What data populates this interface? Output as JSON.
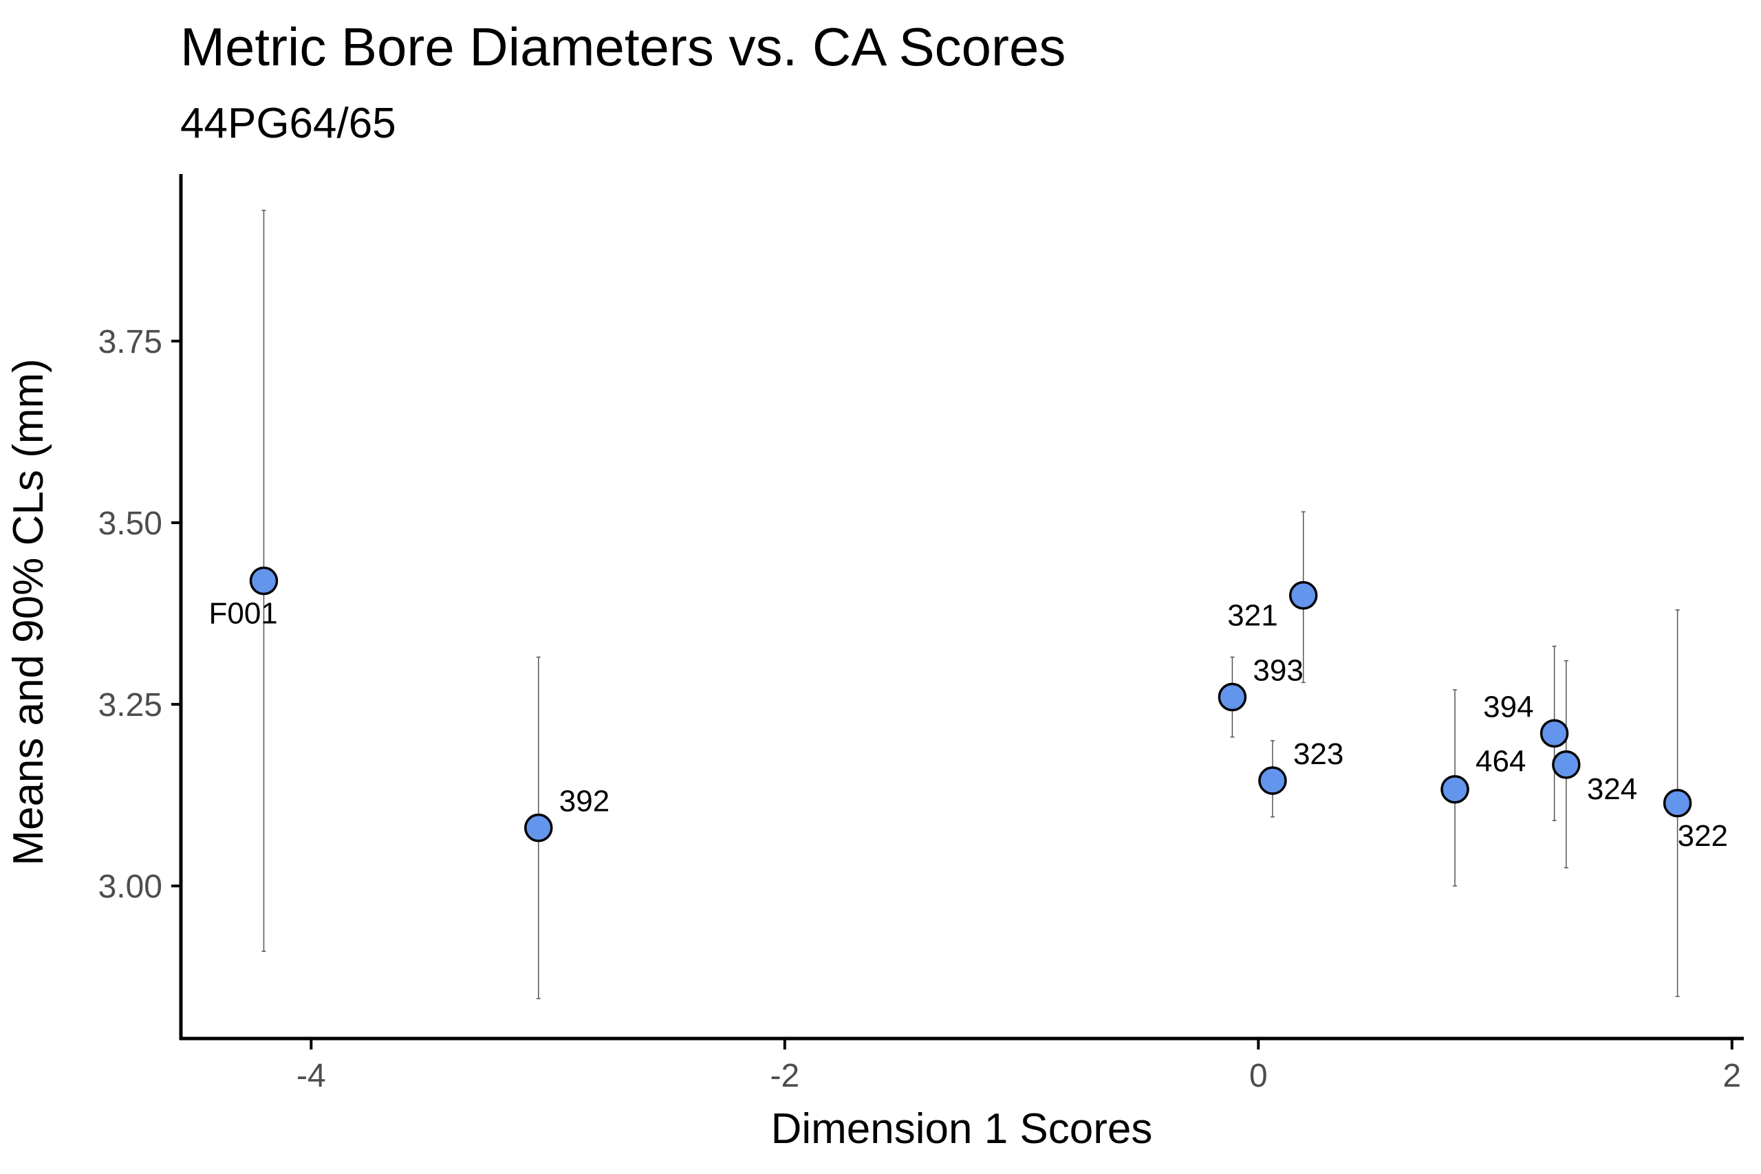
{
  "chart_data": {
    "type": "scatter",
    "title": "Metric Bore Diameters vs. CA Scores",
    "subtitle": "44PG64/65",
    "xlabel": "Dimension 1 Scores",
    "ylabel": "Means and 90% CLs (mm)",
    "xlim": [
      -4.55,
      2.05
    ],
    "ylim": [
      2.79,
      3.98
    ],
    "x_ticks": [
      -4,
      -2,
      0,
      2
    ],
    "x_tick_labels": [
      "-4",
      "-2",
      "0",
      "2"
    ],
    "y_ticks": [
      3.0,
      3.25,
      3.5,
      3.75
    ],
    "y_tick_labels": [
      "3.00",
      "3.25",
      "3.50",
      "3.75"
    ],
    "grid": false,
    "legend": "none",
    "point_color": "#6495ED",
    "point_stroke": "#000000",
    "points": [
      {
        "label": "F001",
        "x": -4.2,
        "y": 3.42,
        "lower": 2.91,
        "upper": 3.93,
        "label_pos": "below"
      },
      {
        "label": "392",
        "x": -3.04,
        "y": 3.08,
        "lower": 2.845,
        "upper": 3.315,
        "label_pos": "upper-right"
      },
      {
        "label": "393",
        "x": -0.11,
        "y": 3.26,
        "lower": 3.205,
        "upper": 3.315,
        "label_pos": "upper-right"
      },
      {
        "label": "323",
        "x": 0.06,
        "y": 3.145,
        "lower": 3.095,
        "upper": 3.2,
        "label_pos": "upper-right"
      },
      {
        "label": "321",
        "x": 0.19,
        "y": 3.4,
        "lower": 3.28,
        "upper": 3.515,
        "label_pos": "lower-left"
      },
      {
        "label": "464",
        "x": 0.83,
        "y": 3.133,
        "lower": 3.0,
        "upper": 3.27,
        "label_pos": "right"
      },
      {
        "label": "394",
        "x": 1.25,
        "y": 3.21,
        "lower": 3.09,
        "upper": 3.33,
        "label_pos": "upper-left"
      },
      {
        "label": "324",
        "x": 1.3,
        "y": 3.167,
        "lower": 3.025,
        "upper": 3.31,
        "label_pos": "lower-right"
      },
      {
        "label": "322",
        "x": 1.77,
        "y": 3.114,
        "lower": 2.848,
        "upper": 3.38,
        "label_pos": "below"
      }
    ]
  }
}
